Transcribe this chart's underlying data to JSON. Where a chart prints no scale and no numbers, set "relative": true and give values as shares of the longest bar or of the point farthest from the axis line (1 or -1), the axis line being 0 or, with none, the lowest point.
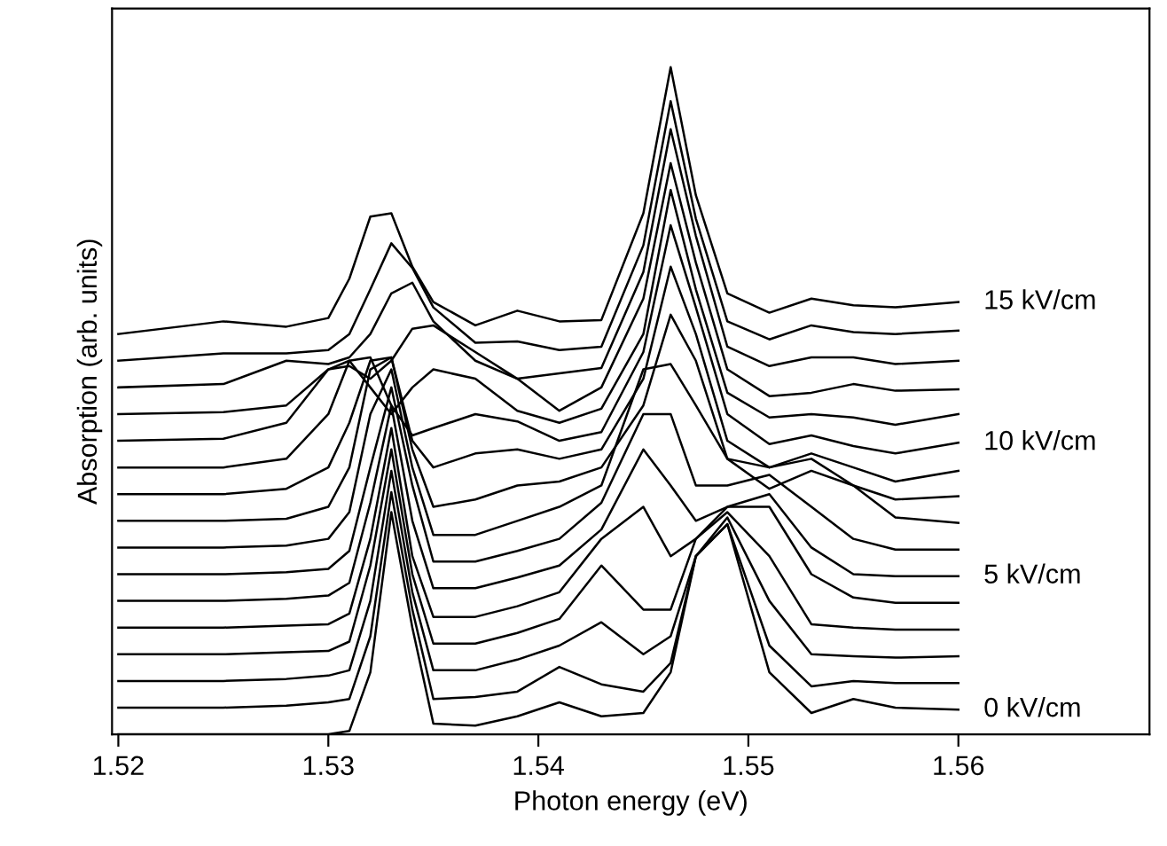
{
  "chart_data": {
    "type": "line",
    "relative": true,
    "xlabel": "Photon energy (eV)",
    "ylabel": "Absorption (arb. units)",
    "xlim": [
      1.5197,
      1.5691
    ],
    "xticks": [
      1.52,
      1.53,
      1.54,
      1.55,
      1.56
    ],
    "tick_labels": "x",
    "grid": false,
    "legend": false,
    "line_style": "solid",
    "x": [
      1.52,
      1.525,
      1.528,
      1.53,
      1.531,
      1.532,
      1.533,
      1.534,
      1.535,
      1.537,
      1.539,
      1.541,
      1.543,
      1.545,
      1.5463,
      1.5475,
      1.549,
      1.551,
      1.553,
      1.555,
      1.557,
      1.56
    ],
    "series": [
      {
        "name": "0 kV/cm",
        "color": "#000000",
        "values": [
          0,
          0,
          0,
          0,
          0.005,
          0.093,
          0.333,
          0.16,
          0.016,
          0.013,
          0.027,
          0.048,
          0.027,
          0.032,
          0.093,
          0.267,
          0.315,
          0.093,
          0.032,
          0.053,
          0.04,
          0.037
        ]
      },
      {
        "color": "#000000",
        "values": [
          0.04,
          0.04,
          0.043,
          0.048,
          0.053,
          0.147,
          0.363,
          0.187,
          0.053,
          0.056,
          0.064,
          0.101,
          0.075,
          0.064,
          0.107,
          0.267,
          0.315,
          0.133,
          0.072,
          0.08,
          0.077,
          0.077
        ]
      },
      {
        "color": "#000000",
        "values": [
          0.08,
          0.08,
          0.083,
          0.088,
          0.096,
          0.2,
          0.395,
          0.213,
          0.096,
          0.096,
          0.112,
          0.133,
          0.168,
          0.12,
          0.147,
          0.267,
          0.325,
          0.2,
          0.12,
          0.117,
          0.115,
          0.117
        ]
      },
      {
        "color": "#000000",
        "values": [
          0.12,
          0.12,
          0.123,
          0.125,
          0.139,
          0.253,
          0.427,
          0.24,
          0.136,
          0.136,
          0.152,
          0.173,
          0.253,
          0.187,
          0.187,
          0.293,
          0.333,
          0.267,
          0.165,
          0.16,
          0.157,
          0.157
        ]
      },
      {
        "color": "#000000",
        "values": [
          0.16,
          0.16,
          0.163,
          0.165,
          0.181,
          0.293,
          0.459,
          0.267,
          0.176,
          0.176,
          0.192,
          0.213,
          0.293,
          0.341,
          0.267,
          0.293,
          0.341,
          0.341,
          0.24,
          0.205,
          0.197,
          0.197
        ]
      },
      {
        "name": "5 kV/cm",
        "color": "#000000",
        "values": [
          0.2,
          0.2,
          0.203,
          0.208,
          0.227,
          0.347,
          0.493,
          0.32,
          0.219,
          0.219,
          0.235,
          0.253,
          0.307,
          0.427,
          0.373,
          0.32,
          0.341,
          0.36,
          0.28,
          0.24,
          0.237,
          0.237
        ]
      },
      {
        "color": "#000000",
        "values": [
          0.24,
          0.24,
          0.243,
          0.248,
          0.275,
          0.4,
          0.52,
          0.373,
          0.259,
          0.259,
          0.275,
          0.293,
          0.347,
          0.48,
          0.48,
          0.373,
          0.373,
          0.389,
          0.341,
          0.293,
          0.277,
          0.277
        ]
      },
      {
        "color": "#000000",
        "values": [
          0.28,
          0.28,
          0.283,
          0.293,
          0.333,
          0.48,
          0.547,
          0.4,
          0.299,
          0.299,
          0.32,
          0.341,
          0.373,
          0.547,
          0.555,
          0.493,
          0.413,
          0.4,
          0.413,
          0.373,
          0.325,
          0.317
        ]
      },
      {
        "color": "#000000",
        "values": [
          0.32,
          0.32,
          0.323,
          0.341,
          0.4,
          0.547,
          0.565,
          0.427,
          0.341,
          0.352,
          0.373,
          0.379,
          0.4,
          0.493,
          0.629,
          0.56,
          0.413,
          0.368,
          0.395,
          0.373,
          0.352,
          0.357
        ]
      },
      {
        "color": "#000000",
        "values": [
          0.36,
          0.36,
          0.368,
          0.4,
          0.467,
          0.56,
          0.565,
          0.44,
          0.4,
          0.421,
          0.427,
          0.413,
          0.427,
          0.533,
          0.701,
          0.6,
          0.44,
          0.4,
          0.421,
          0.4,
          0.379,
          0.395
        ]
      },
      {
        "name": "10 kV/cm",
        "color": "#000000",
        "values": [
          0.4,
          0.4,
          0.413,
          0.48,
          0.56,
          0.565,
          0.493,
          0.448,
          0.459,
          0.48,
          0.469,
          0.44,
          0.453,
          0.573,
          0.763,
          0.64,
          0.48,
          0.435,
          0.448,
          0.432,
          0.421,
          0.437
        ]
      },
      {
        "color": "#000000",
        "values": [
          0.44,
          0.443,
          0.467,
          0.547,
          0.56,
          0.52,
          0.48,
          0.52,
          0.547,
          0.533,
          0.485,
          0.467,
          0.488,
          0.6,
          0.816,
          0.667,
          0.512,
          0.475,
          0.48,
          0.475,
          0.464,
          0.48
        ]
      },
      {
        "color": "#000000",
        "values": [
          0.48,
          0.483,
          0.493,
          0.547,
          0.552,
          0.533,
          0.56,
          0.608,
          0.613,
          0.573,
          0.533,
          0.485,
          0.52,
          0.653,
          0.856,
          0.707,
          0.547,
          0.507,
          0.512,
          0.525,
          0.515,
          0.517
        ]
      },
      {
        "color": "#000000",
        "values": [
          0.52,
          0.525,
          0.56,
          0.555,
          0.565,
          0.6,
          0.661,
          0.677,
          0.619,
          0.56,
          0.533,
          0.541,
          0.549,
          0.693,
          0.907,
          0.747,
          0.581,
          0.552,
          0.565,
          0.565,
          0.555,
          0.56
        ]
      },
      {
        "color": "#000000",
        "values": [
          0.56,
          0.571,
          0.571,
          0.576,
          0.6,
          0.667,
          0.736,
          0.699,
          0.64,
          0.587,
          0.589,
          0.576,
          0.581,
          0.733,
          0.949,
          0.773,
          0.619,
          0.592,
          0.613,
          0.603,
          0.6,
          0.605
        ]
      },
      {
        "name": "15 kV/cm",
        "color": "#000000",
        "values": [
          0.6,
          0.619,
          0.611,
          0.624,
          0.683,
          0.776,
          0.781,
          0.701,
          0.648,
          0.613,
          0.635,
          0.619,
          0.621,
          0.781,
          1,
          0.808,
          0.661,
          0.632,
          0.653,
          0.643,
          0.64,
          0.648
        ]
      }
    ]
  }
}
